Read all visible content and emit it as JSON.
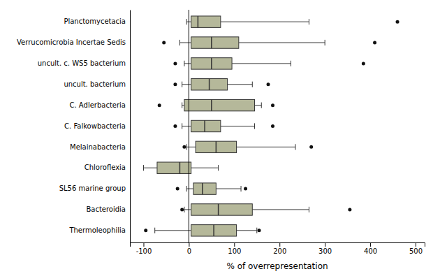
{
  "chart_data": {
    "type": "box",
    "orientation": "horizontal",
    "categories": [
      "Planctomycetacia",
      "Verrucomicrobia Incertae Sedis",
      "uncult. c. WS5 bacterium",
      "uncult. bacterium",
      "C. Adlerbacteria",
      "C. Falkowbacteria",
      "Melainabacteria",
      "Chloroflexia",
      "SL56 marine group",
      "Bacteroidia",
      "Thermoleophilia"
    ],
    "boxes": [
      {
        "whislo": -5,
        "q1": 5,
        "med": 20,
        "q3": 70,
        "whishi": 265,
        "fliers": [
          460
        ]
      },
      {
        "whislo": -20,
        "q1": 5,
        "med": 50,
        "q3": 110,
        "whishi": 300,
        "fliers": [
          -55,
          410
        ]
      },
      {
        "whislo": -10,
        "q1": 5,
        "med": 50,
        "q3": 95,
        "whishi": 225,
        "fliers": [
          -30,
          385
        ]
      },
      {
        "whislo": -15,
        "q1": 5,
        "med": 45,
        "q3": 85,
        "whishi": 140,
        "fliers": [
          -30,
          175
        ]
      },
      {
        "whislo": -15,
        "q1": -10,
        "med": 50,
        "q3": 145,
        "whishi": 160,
        "fliers": [
          -65,
          185
        ]
      },
      {
        "whislo": -15,
        "q1": 5,
        "med": 35,
        "q3": 70,
        "whishi": 145,
        "fliers": [
          -30,
          185
        ]
      },
      {
        "whislo": -5,
        "q1": 15,
        "med": 60,
        "q3": 105,
        "whishi": 235,
        "fliers": [
          -10,
          270
        ]
      },
      {
        "whislo": -100,
        "q1": -70,
        "med": -20,
        "q3": 5,
        "whishi": 65,
        "fliers": []
      },
      {
        "whislo": -5,
        "q1": 10,
        "med": 30,
        "q3": 60,
        "whishi": 115,
        "fliers": [
          -25,
          125
        ]
      },
      {
        "whislo": -10,
        "q1": 5,
        "med": 65,
        "q3": 140,
        "whishi": 265,
        "fliers": [
          -15,
          355
        ]
      },
      {
        "whislo": -75,
        "q1": 5,
        "med": 55,
        "q3": 105,
        "whishi": 150,
        "fliers": [
          -95,
          155
        ]
      }
    ],
    "color": "#b5b89a",
    "xlabel": "% of overrepresentation",
    "xlim": [
      -130,
      520
    ],
    "xticks": [
      -100,
      0,
      100,
      200,
      300,
      400,
      500
    ],
    "vline_x": 0,
    "grid": false
  }
}
